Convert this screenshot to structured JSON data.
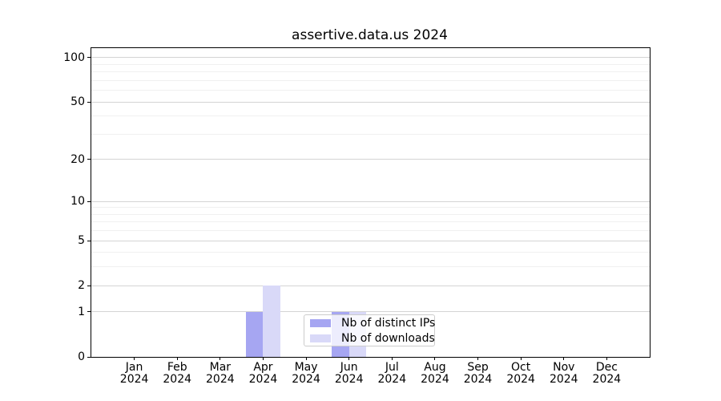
{
  "chart_data": {
    "type": "bar",
    "title": "assertive.data.us 2024",
    "categories": [
      "Jan",
      "Feb",
      "Mar",
      "Apr",
      "May",
      "Jun",
      "Jul",
      "Aug",
      "Sep",
      "Oct",
      "Nov",
      "Dec"
    ],
    "category_year": "2024",
    "series": [
      {
        "name": "Nb of distinct IPs",
        "color": "#a6a6f2",
        "values": [
          0,
          0,
          0,
          1,
          0,
          1,
          0,
          0,
          0,
          0,
          0,
          0
        ]
      },
      {
        "name": "Nb of downloads",
        "color": "#d9d9f8",
        "values": [
          0,
          0,
          0,
          2,
          0,
          1,
          0,
          0,
          0,
          0,
          0,
          0
        ]
      }
    ],
    "yscale": "log1p",
    "ylim": [
      0,
      116
    ],
    "yticks": [
      0,
      1,
      2,
      5,
      10,
      20,
      50,
      100
    ],
    "yticks_minor": [
      3,
      4,
      6,
      7,
      8,
      9,
      30,
      40,
      60,
      70,
      80,
      90
    ],
    "xlabel": "",
    "ylabel": "",
    "grid": true,
    "legend_position": "inside-bottom-center"
  },
  "colors": {
    "background": "#ffffff",
    "axis": "#000000",
    "text": "#000000",
    "grid_major": "#d4d4d4",
    "grid_minor": "#f0f0f0",
    "legend_border": "#cccccc",
    "legend_background": "rgba(255,255,255,0.8)"
  }
}
